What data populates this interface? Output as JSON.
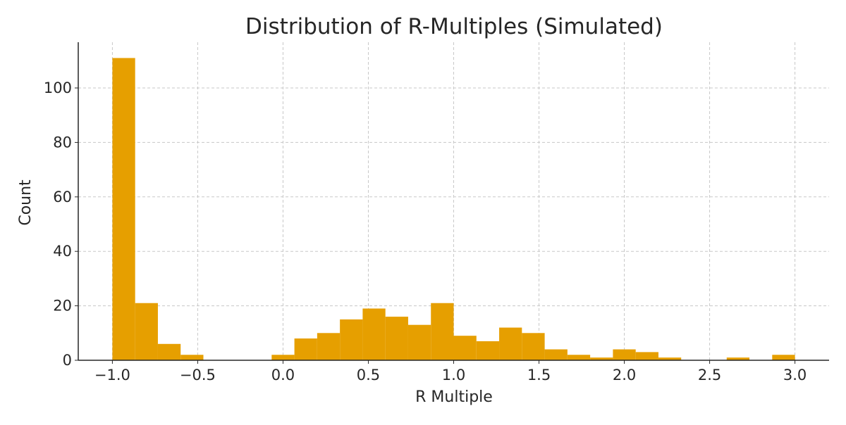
{
  "chart_data": {
    "type": "bar",
    "subtype": "histogram",
    "title": "Distribution of R-Multiples (Simulated)",
    "xlabel": "R Multiple",
    "ylabel": "Count",
    "bin_range": [
      -1.0,
      3.0
    ],
    "bin_count": 30,
    "counts": [
      111,
      21,
      6,
      2,
      0,
      0,
      0,
      2,
      8,
      10,
      15,
      19,
      16,
      13,
      21,
      9,
      7,
      12,
      10,
      4,
      2,
      1,
      4,
      3,
      1,
      0,
      0,
      1,
      0,
      2
    ],
    "xlim": [
      -1.2,
      3.2
    ],
    "ylim": [
      0,
      116.8
    ],
    "xticks": [
      -1.0,
      -0.5,
      0.0,
      0.5,
      1.0,
      1.5,
      2.0,
      2.5,
      3.0
    ],
    "xtick_labels": [
      "−1.0",
      "−0.5",
      "0.0",
      "0.5",
      "1.0",
      "1.5",
      "2.0",
      "2.5",
      "3.0"
    ],
    "yticks": [
      0,
      20,
      40,
      60,
      80,
      100
    ],
    "ytick_labels": [
      "0",
      "20",
      "40",
      "60",
      "80",
      "100"
    ],
    "grid": true,
    "bar_color": "#E69F00",
    "grid_color": "#c8c8c8"
  }
}
